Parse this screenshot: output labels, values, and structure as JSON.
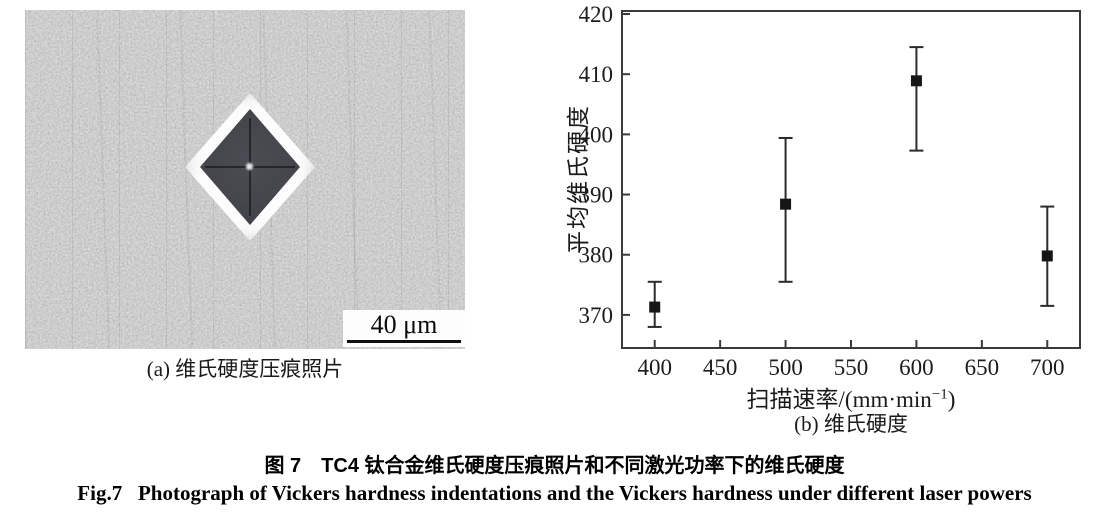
{
  "figure": {
    "title_zh": "图 7　TC4 钛合金维氏硬度压痕照片和不同激光功率下的维氏硬度",
    "title_en": "Fig.7   Photograph of Vickers hardness indentations and the Vickers hardness under different laser powers"
  },
  "photo_panel": {
    "caption": "(a) 维氏硬度压痕照片",
    "scale_bar_label": "40 μm"
  },
  "chart_data": {
    "type": "scatter",
    "title": "",
    "xlabel": "扫描速率/(mm·min⁻¹)",
    "xlabel_prefix": "扫描速率/(mm·min",
    "xlabel_sup": "−1",
    "xlabel_suffix": ")",
    "ylabel": "平均维氏硬度",
    "subcaption": "(b) 维氏硬度",
    "xlim": [
      375,
      725
    ],
    "ylim": [
      364.5,
      420.5
    ],
    "xticks": [
      400,
      450,
      500,
      550,
      600,
      650,
      700
    ],
    "yticks": [
      370,
      380,
      390,
      400,
      410,
      420
    ],
    "grid": false,
    "legend": "none",
    "marker": "square",
    "series": [
      {
        "name": "平均维氏硬度",
        "x": [
          400,
          500,
          600,
          700
        ],
        "y": [
          371.3,
          388.4,
          408.9,
          379.8
        ],
        "y_low": [
          368.0,
          375.5,
          397.3,
          371.5
        ],
        "y_high": [
          375.5,
          399.4,
          414.5,
          388.0
        ]
      }
    ],
    "colors": {
      "marker": "#161616",
      "error_bar": "#2b2b2b",
      "axis": "#3a3a3a"
    }
  }
}
